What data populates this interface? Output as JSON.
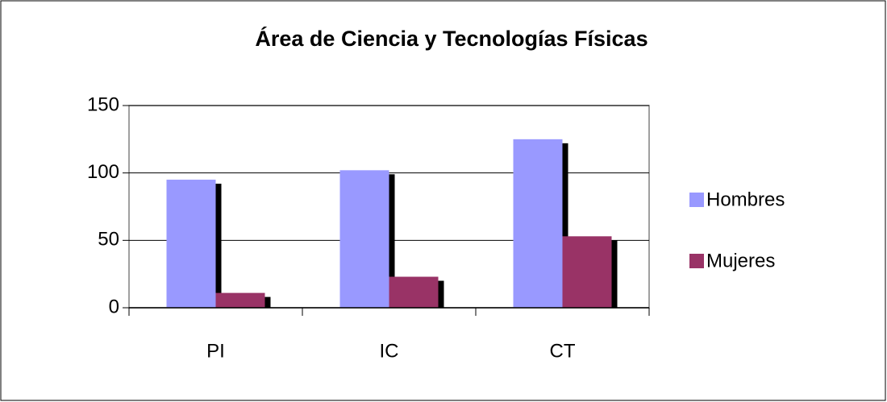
{
  "chart_data": {
    "type": "bar",
    "title": "Área de Ciencia y Tecnologías Físicas",
    "categories": [
      "PI",
      "IC",
      "CT"
    ],
    "series": [
      {
        "name": "Hombres",
        "color": "#9999ff",
        "values": [
          95,
          102,
          125
        ]
      },
      {
        "name": "Mujeres",
        "color": "#993366",
        "values": [
          11,
          23,
          53
        ]
      }
    ],
    "ylim": [
      0,
      150
    ],
    "yticks": [
      0,
      50,
      100,
      150
    ],
    "grid": true,
    "legend": "right"
  }
}
